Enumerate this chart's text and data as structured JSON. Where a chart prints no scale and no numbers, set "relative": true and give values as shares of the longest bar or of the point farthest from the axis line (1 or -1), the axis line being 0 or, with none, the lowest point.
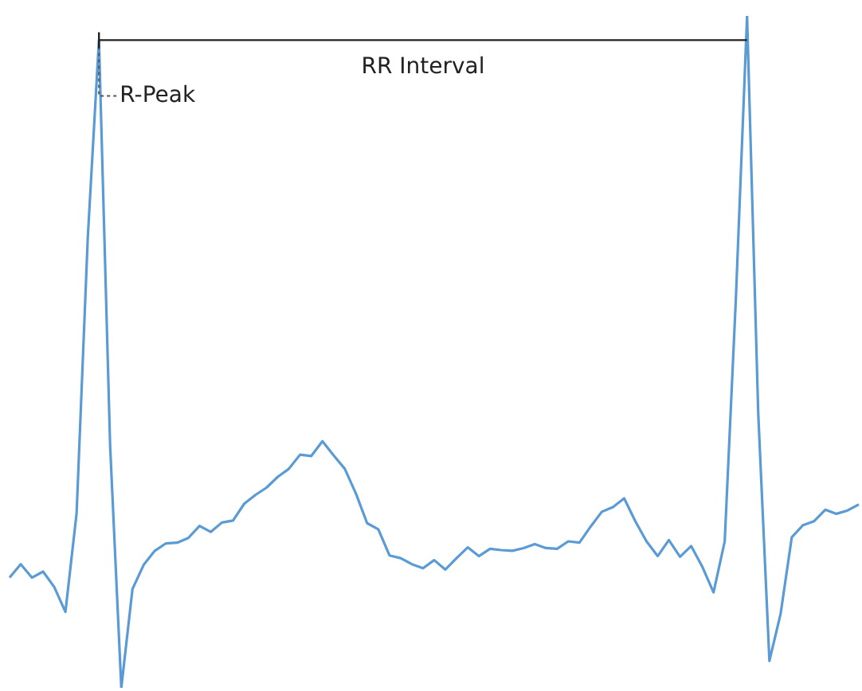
{
  "chart_data": {
    "type": "line",
    "relative": true,
    "legend": false,
    "marker": "none",
    "line_style": "solid",
    "annotations": [
      "R-Peak"
    ],
    "ref_lines": [
      {
        "axis": "y",
        "value": 0.964,
        "label": "RR Interval",
        "color": "#222222"
      }
    ],
    "categories": [
      null,
      null,
      null,
      null,
      null,
      null,
      null,
      null,
      null,
      null,
      null,
      null,
      null,
      null,
      null,
      null,
      null,
      null,
      null,
      null,
      null,
      null,
      null,
      null,
      null,
      null,
      null,
      null,
      null,
      null,
      null,
      null,
      null,
      null,
      null,
      null,
      null,
      null,
      null,
      null,
      null,
      null,
      null,
      null,
      null,
      null,
      null,
      null,
      null,
      null,
      null,
      null,
      null,
      null,
      null,
      null,
      null,
      null,
      null,
      null,
      null,
      null,
      null,
      null,
      null,
      null,
      null,
      null,
      null,
      null,
      null,
      null,
      null,
      null,
      null,
      null,
      null
    ],
    "series": [
      {
        "color": "#5b9bd5",
        "values": [
          0.164,
          0.184,
          0.164,
          0.173,
          0.15,
          0.113,
          0.26,
          0.67,
          0.964,
          0.36,
          0,
          0.147,
          0.183,
          0.204,
          0.215,
          0.216,
          0.223,
          0.241,
          0.232,
          0.246,
          0.249,
          0.274,
          0.287,
          0.298,
          0.314,
          0.326,
          0.347,
          0.345,
          0.367,
          0.346,
          0.326,
          0.289,
          0.245,
          0.236,
          0.197,
          0.193,
          0.184,
          0.178,
          0.19,
          0.176,
          0.193,
          0.209,
          0.196,
          0.207,
          0.205,
          0.204,
          0.208,
          0.214,
          0.208,
          0.207,
          0.218,
          0.216,
          0.24,
          0.262,
          0.269,
          0.282,
          0.248,
          0.218,
          0.196,
          0.22,
          0.195,
          0.211,
          0.18,
          0.142,
          0.218,
          0.58,
          1,
          0.408,
          0.04,
          0.11,
          0.224,
          0.242,
          0.248,
          0.265,
          0.259,
          0.264,
          0.273
        ]
      }
    ]
  }
}
